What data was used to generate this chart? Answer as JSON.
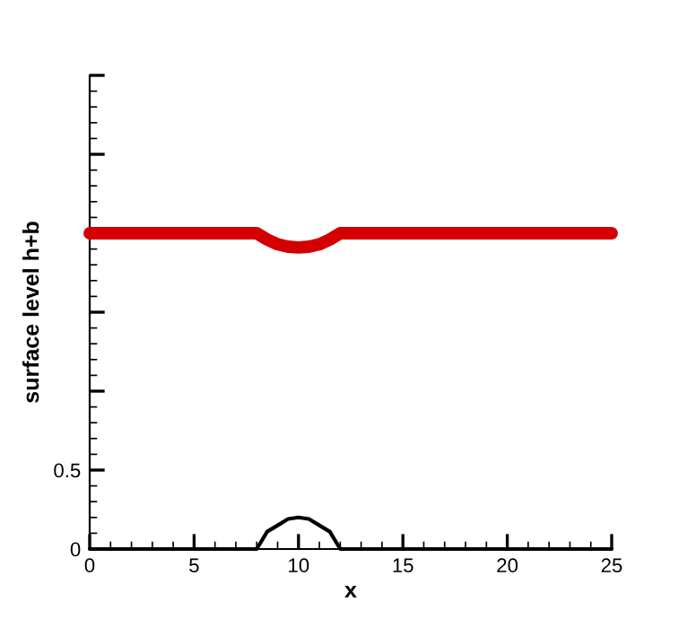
{
  "chart_data": {
    "type": "line",
    "xlabel": "x",
    "ylabel": "surface level h+b",
    "series": [
      {
        "color": "#d40000",
        "x": [
          0,
          8,
          8.5,
          9,
          9.5,
          10,
          10.5,
          11,
          11.5,
          12,
          25
        ],
        "values": [
          2,
          2,
          1.96,
          1.93,
          1.915,
          1.91,
          1.915,
          1.93,
          1.96,
          2,
          2
        ]
      },
      {
        "color": "#000000",
        "x": [
          0,
          8,
          8.5,
          9,
          9.5,
          10,
          10.5,
          11,
          11.5,
          12,
          25
        ],
        "values": [
          0,
          0,
          0.11,
          0.15,
          0.19,
          0.2,
          0.19,
          0.15,
          0.11,
          0,
          0
        ]
      }
    ],
    "xlim": [
      0,
      25
    ],
    "ylim": [
      0,
      3
    ],
    "xticks": [
      0,
      5,
      10,
      15,
      20,
      25
    ],
    "yticks": [
      0,
      0.5,
      {
        "value": 1,
        "label": null
      },
      {
        "value": 1.5,
        "label": null
      },
      {
        "value": 2,
        "label": null
      },
      {
        "value": 2.5,
        "label": null
      },
      {
        "value": 3,
        "label": null
      }
    ],
    "grid": false,
    "legend": false,
    "marker": "none",
    "line_style": "solid"
  }
}
